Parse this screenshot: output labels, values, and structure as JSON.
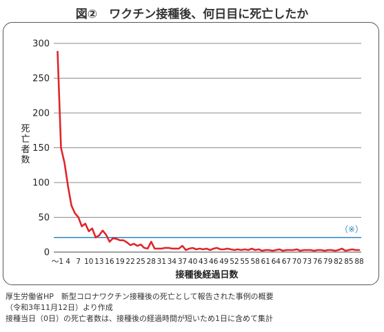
{
  "title": "図②　ワクチン接種後、何日目に死亡したか",
  "chart_data": {
    "type": "line",
    "title": "図②　ワクチン接種後、何日目に死亡したか",
    "xlabel": "接種後経過日数",
    "ylabel": "死亡者数",
    "ylim": [
      0,
      300
    ],
    "yticks": [
      0,
      50,
      100,
      150,
      200,
      250,
      300
    ],
    "xticks": [
      "～1",
      "4",
      "7",
      "10",
      "13",
      "16",
      "19",
      "22",
      "25",
      "28",
      "31",
      "34",
      "37",
      "40",
      "43",
      "46",
      "49",
      "52",
      "55",
      "58",
      "61",
      "64",
      "67",
      "70",
      "73",
      "76",
      "79",
      "82",
      "85",
      "88"
    ],
    "grid": "horizontal",
    "series": [
      {
        "name": "",
        "color": "#e0252b",
        "x": [
          1,
          2,
          3,
          4,
          5,
          6,
          7,
          8,
          9,
          10,
          11,
          12,
          13,
          14,
          15,
          16,
          17,
          18,
          19,
          20,
          21,
          22,
          23,
          24,
          25,
          26,
          27,
          28,
          29,
          30,
          31,
          32,
          33,
          34,
          35,
          36,
          37,
          38,
          39,
          40,
          41,
          42,
          43,
          44,
          45,
          46,
          47,
          48,
          49,
          50,
          51,
          52,
          53,
          54,
          55,
          56,
          57,
          58,
          59,
          60,
          61,
          62,
          63,
          64,
          65,
          66,
          67,
          68,
          69,
          70,
          71,
          72,
          73,
          74,
          75,
          76,
          77,
          78,
          79,
          80,
          81,
          82,
          83,
          84,
          85,
          86,
          87,
          88
        ],
        "values": [
          288,
          150,
          128,
          95,
          67,
          56,
          50,
          37,
          41,
          30,
          34,
          21,
          24,
          31,
          25,
          15,
          20,
          19,
          17,
          17,
          14,
          10,
          12,
          9,
          11,
          6,
          5,
          15,
          5,
          5,
          5,
          6,
          6,
          5,
          5,
          5,
          9,
          3,
          5,
          6,
          4,
          5,
          4,
          5,
          3,
          5,
          6,
          4,
          4,
          5,
          4,
          3,
          4,
          3,
          4,
          3,
          5,
          3,
          4,
          2,
          3,
          3,
          2,
          3,
          4,
          2,
          3,
          3,
          3,
          4,
          2,
          3,
          3,
          3,
          2,
          3,
          3,
          2,
          3,
          3,
          2,
          3,
          5,
          2,
          3,
          4,
          3,
          3
        ]
      }
    ],
    "reference_line": {
      "value": 21,
      "color": "#2e86c1",
      "label": "（※）"
    }
  },
  "notes": [
    "厚生労働省HP　新型コロナワクチン接種後の死亡として報告された事例の概要",
    "（令和3年11月12日）より作成",
    "接種当日（0日）の死亡者数は、接種後の経過時間が短いため1日に含めて集計"
  ]
}
